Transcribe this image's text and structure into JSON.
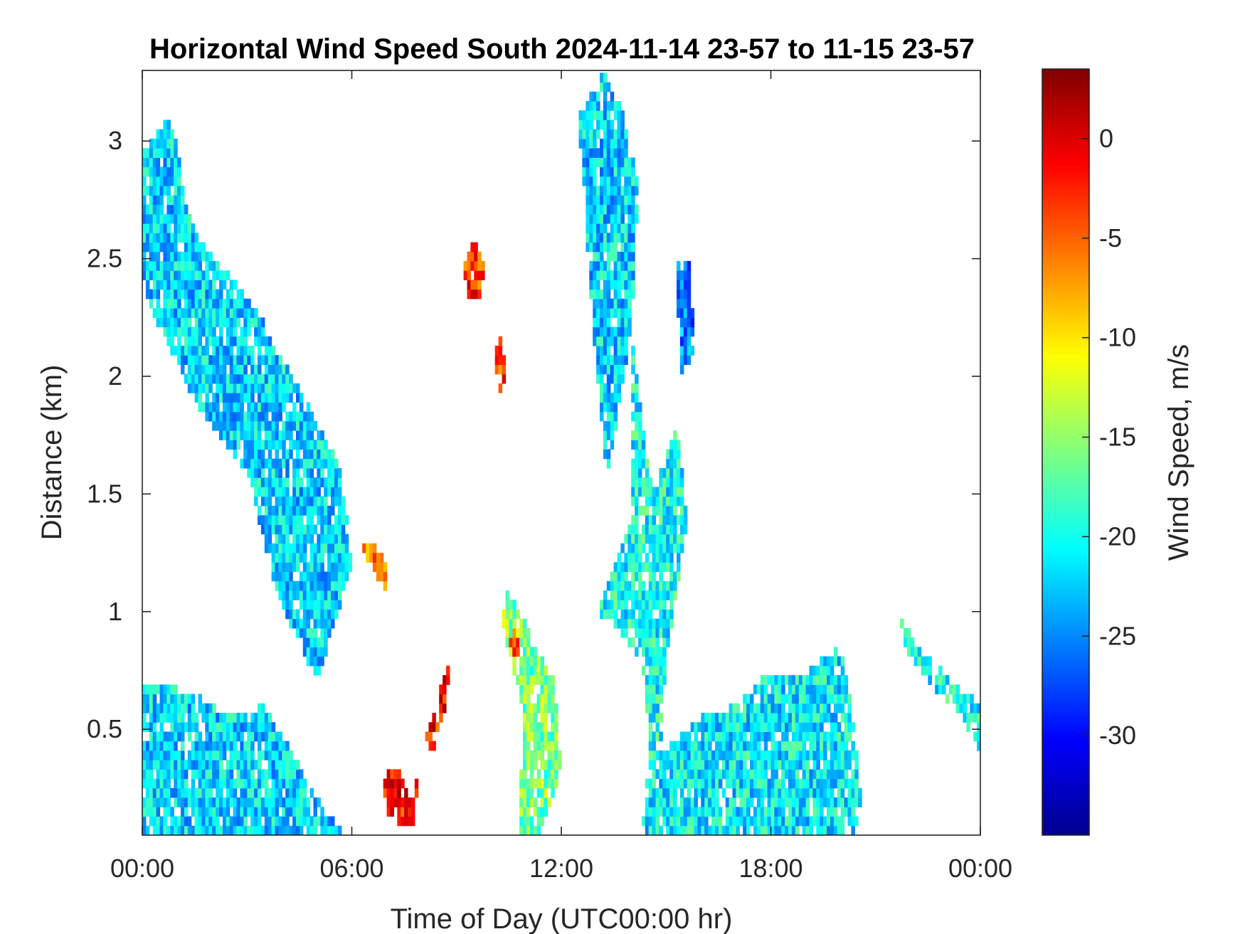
{
  "chart_data": {
    "type": "heatmap",
    "title": "Horizontal Wind Speed South 2024-11-14 23-57 to 11-15 23-57",
    "xlabel": "Time of Day (UTC00:00 hr)",
    "ylabel": "Distance (km)",
    "colorbar_label": "Wind Speed, m/s",
    "colormap": "jet",
    "grid": false,
    "x_unit": "hours",
    "xlim": [
      0,
      24
    ],
    "ylim": [
      0.05,
      3.3
    ],
    "clim": [
      -35,
      3.5
    ],
    "x_ticks": [
      0,
      6,
      12,
      18,
      24
    ],
    "x_tick_labels": [
      "00:00",
      "06:00",
      "12:00",
      "18:00",
      "00:00"
    ],
    "y_ticks": [
      0.5,
      1,
      1.5,
      2,
      2.5,
      3
    ],
    "y_tick_labels": [
      "0.5",
      "1",
      "1.5",
      "2",
      "2.5",
      "3"
    ],
    "colorbar_ticks": [
      0,
      -5,
      -10,
      -15,
      -20,
      -25,
      -30
    ],
    "colorbar_tick_labels": [
      "0",
      "-5",
      "-10",
      "-15",
      "-20",
      "-25",
      "-30"
    ],
    "regions": [
      {
        "name": "descending upper band",
        "value": -22,
        "points": [
          [
            0,
            2.95
          ],
          [
            0.8,
            3.1
          ],
          [
            1.5,
            2.6
          ],
          [
            3.2,
            2.3
          ],
          [
            4.3,
            2.0
          ],
          [
            5.7,
            1.6
          ],
          [
            6.0,
            1.2
          ],
          [
            5.0,
            0.7
          ],
          [
            3.8,
            1.1
          ],
          [
            3.0,
            1.6
          ],
          [
            1.5,
            1.9
          ],
          [
            0.2,
            2.3
          ],
          [
            0,
            2.45
          ]
        ]
      },
      {
        "name": "morning surface layer",
        "value": -22,
        "points": [
          [
            0,
            0.7
          ],
          [
            0.8,
            0.68
          ],
          [
            1.5,
            0.65
          ],
          [
            2.5,
            0.55
          ],
          [
            3.5,
            0.6
          ],
          [
            4.3,
            0.4
          ],
          [
            5.2,
            0.15
          ],
          [
            6.0,
            0.05
          ],
          [
            0,
            0.05
          ]
        ]
      },
      {
        "name": "morning wave",
        "value": -6,
        "points": [
          [
            6.2,
            1.25
          ],
          [
            6.6,
            1.2
          ],
          [
            6.9,
            1.05
          ],
          [
            7.1,
            1.15
          ],
          [
            7.0,
            1.22
          ],
          [
            6.5,
            1.3
          ]
        ]
      },
      {
        "name": "low red feature",
        "value": -2,
        "points": [
          [
            6.9,
            0.3
          ],
          [
            7.3,
            0.35
          ],
          [
            7.7,
            0.2
          ],
          [
            7.9,
            0.3
          ],
          [
            7.8,
            0.1
          ],
          [
            7.4,
            0.1
          ],
          [
            7.0,
            0.15
          ]
        ]
      },
      {
        "name": "rising red streak",
        "value": -2,
        "points": [
          [
            8.1,
            0.45
          ],
          [
            8.5,
            0.65
          ],
          [
            8.8,
            0.78
          ],
          [
            8.7,
            0.6
          ],
          [
            8.3,
            0.4
          ]
        ]
      },
      {
        "name": "upper red cell",
        "value": -3,
        "points": [
          [
            9.2,
            2.45
          ],
          [
            9.5,
            2.6
          ],
          [
            9.8,
            2.45
          ],
          [
            9.6,
            2.3
          ],
          [
            9.3,
            2.35
          ]
        ]
      },
      {
        "name": "mid red cell",
        "value": -4,
        "points": [
          [
            10.1,
            2.1
          ],
          [
            10.3,
            2.2
          ],
          [
            10.4,
            2.0
          ],
          [
            10.2,
            1.9
          ]
        ]
      },
      {
        "name": "midday descending streak",
        "value": -16,
        "points": [
          [
            10.4,
            1.1
          ],
          [
            11.0,
            0.95
          ],
          [
            11.8,
            0.7
          ],
          [
            12.0,
            0.3
          ],
          [
            11.4,
            0.05
          ],
          [
            10.8,
            0.05
          ],
          [
            10.9,
            0.6
          ],
          [
            10.3,
            0.95
          ]
        ]
      },
      {
        "name": "red tail at midday",
        "value": -4,
        "points": [
          [
            10.6,
            0.95
          ],
          [
            10.9,
            0.85
          ],
          [
            10.8,
            0.75
          ],
          [
            10.5,
            0.85
          ]
        ]
      },
      {
        "name": "noon upper column",
        "value": -22,
        "points": [
          [
            12.5,
            3.1
          ],
          [
            13.2,
            3.3
          ],
          [
            13.8,
            3.1
          ],
          [
            14.2,
            2.8
          ],
          [
            14.0,
            2.2
          ],
          [
            13.3,
            1.55
          ],
          [
            12.8,
            2.4
          ]
        ]
      },
      {
        "name": "afternoon descending plume",
        "value": -20,
        "points": [
          [
            14.0,
            2.2
          ],
          [
            14.6,
            1.5
          ],
          [
            15.3,
            1.8
          ],
          [
            15.6,
            1.4
          ],
          [
            15.0,
            0.8
          ],
          [
            14.8,
            0.35
          ],
          [
            14.6,
            0.3
          ],
          [
            14.3,
            0.8
          ],
          [
            13.5,
            0.95
          ],
          [
            13.0,
            1.0
          ],
          [
            14.0,
            1.4
          ]
        ]
      },
      {
        "name": "upper afternoon cell",
        "value": -25,
        "points": [
          [
            15.3,
            2.5
          ],
          [
            15.7,
            2.5
          ],
          [
            15.8,
            2.1
          ],
          [
            15.4,
            2.0
          ]
        ]
      },
      {
        "name": "afternoon surface layer",
        "value": -21,
        "points": [
          [
            14.5,
            0.35
          ],
          [
            16.0,
            0.55
          ],
          [
            17.0,
            0.6
          ],
          [
            18.0,
            0.75
          ],
          [
            19.0,
            0.75
          ],
          [
            20.0,
            0.85
          ],
          [
            20.3,
            0.6
          ],
          [
            20.6,
            0.2
          ],
          [
            20.4,
            0.05
          ],
          [
            14.3,
            0.05
          ]
        ]
      },
      {
        "name": "evening streak",
        "value": -20,
        "points": [
          [
            21.6,
            1.0
          ],
          [
            22.2,
            0.85
          ],
          [
            23.2,
            0.7
          ],
          [
            24.0,
            0.6
          ],
          [
            24.0,
            0.4
          ],
          [
            23.5,
            0.55
          ],
          [
            22.5,
            0.7
          ],
          [
            21.8,
            0.85
          ]
        ]
      }
    ]
  }
}
